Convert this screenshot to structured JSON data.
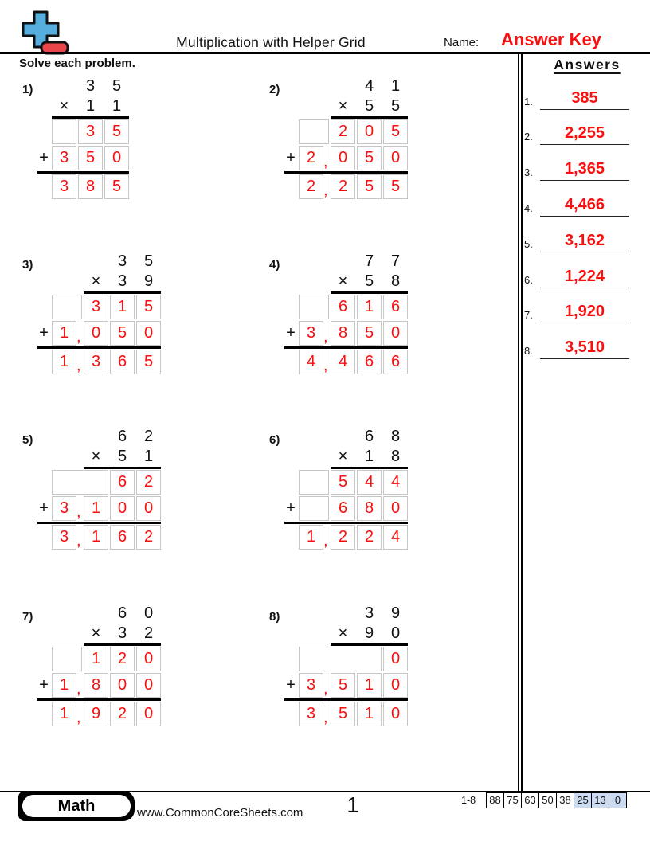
{
  "colors": {
    "digit_red": "#f90f0f",
    "grid_border": "#c6c6c6",
    "score_highlight": "#cadbf2",
    "logo_blue": "#55aedd",
    "logo_red": "#e9464a"
  },
  "symbols": {
    "plus": "+",
    "comma": ",",
    "multiply": "×"
  },
  "header": {
    "title": "Multiplication with Helper Grid",
    "name_label": "Name:",
    "name_value": "Answer Key",
    "instruction": "Solve each problem."
  },
  "answers_panel": {
    "title": "Answers",
    "items": [
      {
        "num": "1.",
        "value": "385"
      },
      {
        "num": "2.",
        "value": "2,255"
      },
      {
        "num": "3.",
        "value": "1,365"
      },
      {
        "num": "4.",
        "value": "4,466"
      },
      {
        "num": "5.",
        "value": "3,162"
      },
      {
        "num": "6.",
        "value": "1,224"
      },
      {
        "num": "7.",
        "value": "1,920"
      },
      {
        "num": "8.",
        "value": "3,510"
      }
    ]
  },
  "problems": [
    {
      "label": "1)",
      "columns": 3,
      "comma_gap": false,
      "top_row": [
        "",
        "3",
        "5"
      ],
      "mult_row": [
        "×",
        "1",
        "1"
      ],
      "grid_rows": [
        {
          "cells": [
            "",
            "3",
            "5"
          ],
          "plus": false,
          "comma": false
        },
        {
          "cells": [
            "3",
            "5",
            "0"
          ],
          "plus": true,
          "comma": false
        }
      ],
      "answer_row": {
        "cells": [
          "3",
          "8",
          "5"
        ],
        "plus": false,
        "comma": false
      }
    },
    {
      "label": "2)",
      "columns": 4,
      "comma_gap": true,
      "top_row": [
        "",
        "",
        "4",
        "1"
      ],
      "mult_row": [
        "",
        "×",
        "5",
        "5"
      ],
      "grid_rows": [
        {
          "cells": [
            "",
            "2",
            "0",
            "5"
          ],
          "plus": false,
          "comma": false
        },
        {
          "cells": [
            "2",
            "0",
            "5",
            "0"
          ],
          "plus": true,
          "comma": true
        }
      ],
      "answer_row": {
        "cells": [
          "2",
          "2",
          "5",
          "5"
        ],
        "plus": false,
        "comma": true
      }
    },
    {
      "label": "3)",
      "columns": 4,
      "comma_gap": true,
      "top_row": [
        "",
        "",
        "3",
        "5"
      ],
      "mult_row": [
        "",
        "×",
        "3",
        "9"
      ],
      "grid_rows": [
        {
          "cells": [
            "",
            "3",
            "1",
            "5"
          ],
          "plus": false,
          "comma": false
        },
        {
          "cells": [
            "1",
            "0",
            "5",
            "0"
          ],
          "plus": true,
          "comma": true
        }
      ],
      "answer_row": {
        "cells": [
          "1",
          "3",
          "6",
          "5"
        ],
        "plus": false,
        "comma": true
      }
    },
    {
      "label": "4)",
      "columns": 4,
      "comma_gap": true,
      "top_row": [
        "",
        "",
        "7",
        "7"
      ],
      "mult_row": [
        "",
        "×",
        "5",
        "8"
      ],
      "grid_rows": [
        {
          "cells": [
            "",
            "6",
            "1",
            "6"
          ],
          "plus": false,
          "comma": false
        },
        {
          "cells": [
            "3",
            "8",
            "5",
            "0"
          ],
          "plus": true,
          "comma": true
        }
      ],
      "answer_row": {
        "cells": [
          "4",
          "4",
          "6",
          "6"
        ],
        "plus": false,
        "comma": true
      }
    },
    {
      "label": "5)",
      "columns": 4,
      "comma_gap": true,
      "top_row": [
        "",
        "",
        "6",
        "2"
      ],
      "mult_row": [
        "",
        "×",
        "5",
        "1"
      ],
      "grid_rows": [
        {
          "cells": [
            "",
            "",
            "6",
            "2"
          ],
          "plus": false,
          "comma": false
        },
        {
          "cells": [
            "3",
            "1",
            "0",
            "0"
          ],
          "plus": true,
          "comma": true
        }
      ],
      "answer_row": {
        "cells": [
          "3",
          "1",
          "6",
          "2"
        ],
        "plus": false,
        "comma": true
      }
    },
    {
      "label": "6)",
      "columns": 4,
      "comma_gap": true,
      "top_row": [
        "",
        "",
        "6",
        "8"
      ],
      "mult_row": [
        "",
        "×",
        "1",
        "8"
      ],
      "grid_rows": [
        {
          "cells": [
            "",
            "5",
            "4",
            "4"
          ],
          "plus": false,
          "comma": false
        },
        {
          "cells": [
            "",
            "6",
            "8",
            "0"
          ],
          "plus": true,
          "comma": false
        }
      ],
      "answer_row": {
        "cells": [
          "1",
          "2",
          "2",
          "4"
        ],
        "plus": false,
        "comma": true
      }
    },
    {
      "label": "7)",
      "columns": 4,
      "comma_gap": true,
      "top_row": [
        "",
        "",
        "6",
        "0"
      ],
      "mult_row": [
        "",
        "×",
        "3",
        "2"
      ],
      "grid_rows": [
        {
          "cells": [
            "",
            "1",
            "2",
            "0"
          ],
          "plus": false,
          "comma": false
        },
        {
          "cells": [
            "1",
            "8",
            "0",
            "0"
          ],
          "plus": true,
          "comma": true
        }
      ],
      "answer_row": {
        "cells": [
          "1",
          "9",
          "2",
          "0"
        ],
        "plus": false,
        "comma": true
      }
    },
    {
      "label": "8)",
      "columns": 4,
      "comma_gap": true,
      "top_row": [
        "",
        "",
        "3",
        "9"
      ],
      "mult_row": [
        "",
        "×",
        "9",
        "0"
      ],
      "grid_rows": [
        {
          "cells": [
            "",
            "",
            "",
            "0"
          ],
          "plus": false,
          "comma": false
        },
        {
          "cells": [
            "3",
            "5",
            "1",
            "0"
          ],
          "plus": true,
          "comma": true
        }
      ],
      "answer_row": {
        "cells": [
          "3",
          "5",
          "1",
          "0"
        ],
        "plus": false,
        "comma": true
      }
    }
  ],
  "footer": {
    "subject": "Math",
    "url": "www.CommonCoreSheets.com",
    "page": "1",
    "range_label": "1-8",
    "scores": [
      "88",
      "75",
      "63",
      "50",
      "38",
      "25",
      "13",
      "0"
    ],
    "highlight_from": 5
  }
}
